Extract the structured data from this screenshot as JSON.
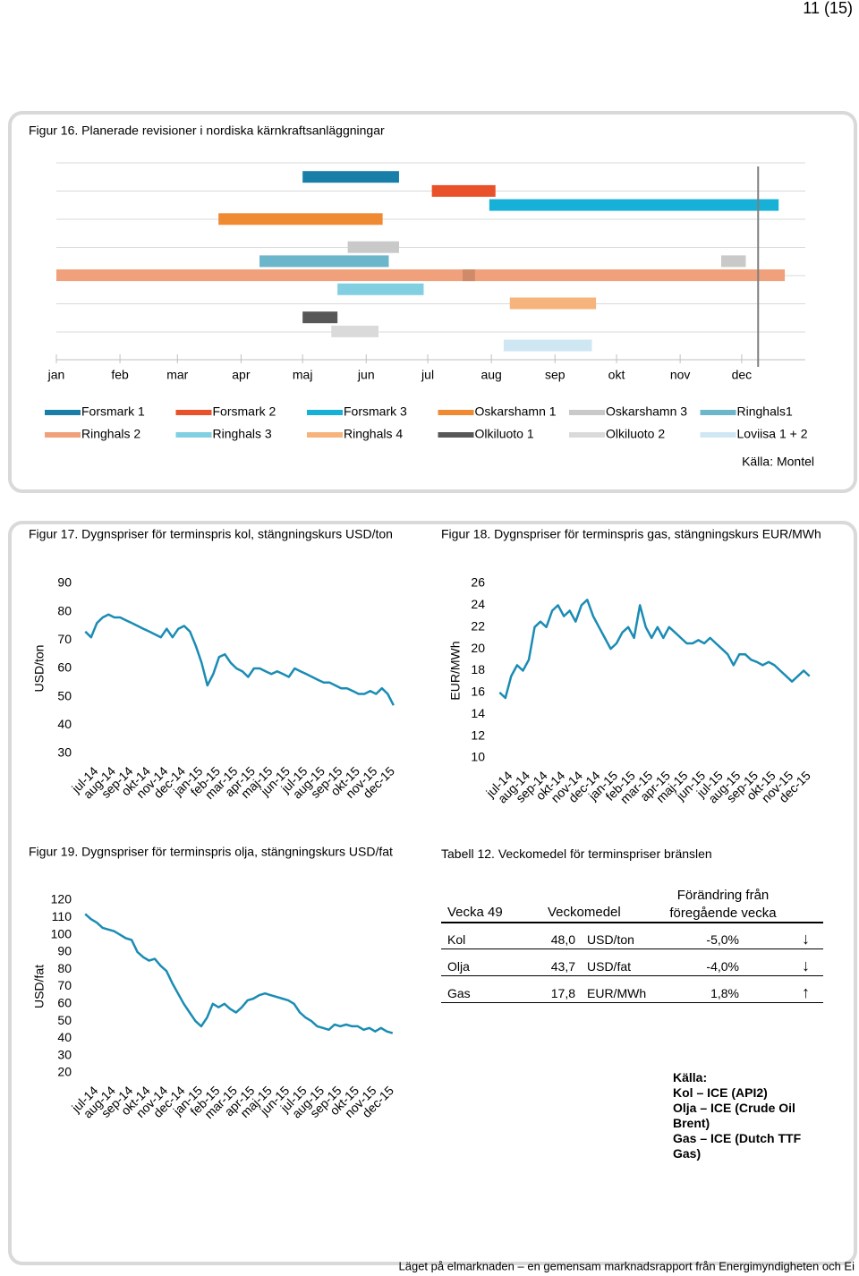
{
  "header": {
    "page_number": "11 (15)"
  },
  "footer": "Läget på elmarknaden – en gemensam marknadsrapport från Energimyndigheten och Ei",
  "chart_data": [
    {
      "type": "gantt",
      "title": "Figur 16. Planerade revisioner i nordiska kärnkraftsanläggningar",
      "xlim": [
        0,
        365
      ],
      "xticks": [
        {
          "value": 0,
          "label": "jan"
        },
        {
          "value": 31,
          "label": "feb"
        },
        {
          "value": 59,
          "label": "mar"
        },
        {
          "value": 90,
          "label": "apr"
        },
        {
          "value": 120,
          "label": "maj"
        },
        {
          "value": 151,
          "label": "jun"
        },
        {
          "value": 181,
          "label": "jul"
        },
        {
          "value": 212,
          "label": "aug"
        },
        {
          "value": 243,
          "label": "sep"
        },
        {
          "value": 273,
          "label": "okt"
        },
        {
          "value": 304,
          "label": "nov"
        },
        {
          "value": 334,
          "label": "dec"
        }
      ],
      "series": [
        {
          "name": "Forsmark 1",
          "color": "#1a7fa8",
          "periods": [
            [
              120,
              167
            ]
          ]
        },
        {
          "name": "Forsmark 2",
          "color": "#e8512a",
          "periods": [
            [
              183,
              214
            ]
          ]
        },
        {
          "name": "Forsmark 3",
          "color": "#17b0d6",
          "periods": [
            [
              211,
              352
            ]
          ]
        },
        {
          "name": "Oskarshamn 1",
          "color": "#ef8a32",
          "periods": [
            [
              79,
              159
            ]
          ]
        },
        {
          "name": "Oskarshamn 3",
          "color": "#c9c9c9",
          "periods": [
            [
              142,
              167
            ],
            [
              324,
              336
            ]
          ]
        },
        {
          "name": "Ringhals1",
          "color": "#6cb6cc",
          "periods": [
            [
              99,
              162
            ]
          ]
        },
        {
          "name": "Ringhals 2",
          "color": "#f0a07a",
          "periods": [
            [
              0,
              355
            ],
            [
              198,
              204
            ]
          ]
        },
        {
          "name": "Ringhals 3",
          "color": "#82cfe2",
          "periods": [
            [
              137,
              179
            ]
          ]
        },
        {
          "name": "Ringhals 4",
          "color": "#f6b47c",
          "periods": [
            [
              221,
              263
            ]
          ]
        },
        {
          "name": "Olkiluoto 1",
          "color": "#575757",
          "periods": [
            [
              120,
              137
            ]
          ]
        },
        {
          "name": "Olkiluoto 2",
          "color": "#dadada",
          "periods": [
            [
              134,
              157
            ]
          ]
        },
        {
          "name": "Loviisa 1 + 2",
          "color": "#cfe7f3",
          "periods": [
            [
              218,
              261
            ]
          ]
        }
      ],
      "reference_line_x": 342,
      "source": "Källa: Montel"
    },
    {
      "type": "line",
      "title": "Figur 17. Dygnspriser för terminspris kol, stängningskurs USD/ton",
      "y_label": "USD/ton",
      "categories": [
        "jul-14",
        "aug-14",
        "sep-14",
        "okt-14",
        "nov-14",
        "dec-14",
        "jan-15",
        "feb-15",
        "mar-15",
        "apr-15",
        "maj-15",
        "jun-15",
        "jul-15",
        "aug-15",
        "sep-15",
        "okt-15",
        "nov-15",
        "dec-15"
      ],
      "x": [
        "jul-14",
        "jul-14",
        "jul-14",
        "aug-14",
        "aug-14",
        "aug-14",
        "sep-14",
        "sep-14",
        "sep-14",
        "okt-14",
        "okt-14",
        "okt-14",
        "nov-14",
        "nov-14",
        "nov-14",
        "dec-14",
        "dec-14",
        "dec-14",
        "jan-15",
        "jan-15",
        "jan-15",
        "feb-15",
        "feb-15",
        "feb-15",
        "mar-15",
        "mar-15",
        "mar-15",
        "apr-15",
        "apr-15",
        "apr-15",
        "maj-15",
        "maj-15",
        "maj-15",
        "jun-15",
        "jun-15",
        "jun-15",
        "jul-15",
        "jul-15",
        "jul-15",
        "aug-15",
        "aug-15",
        "aug-15",
        "sep-15",
        "sep-15",
        "sep-15",
        "okt-15",
        "okt-15",
        "okt-15",
        "nov-15",
        "nov-15",
        "nov-15",
        "dec-15",
        "dec-15",
        "dec-15"
      ],
      "values": [
        73,
        71,
        76,
        78,
        79,
        78,
        78,
        77,
        76,
        75,
        74,
        73,
        72,
        71,
        74,
        71,
        74,
        75,
        73,
        68,
        62,
        54,
        58,
        64,
        65,
        62,
        60,
        59,
        57,
        60,
        60,
        59,
        58,
        59,
        58,
        57,
        60,
        59,
        58,
        57,
        56,
        55,
        55,
        54,
        53,
        53,
        52,
        51,
        51,
        52,
        51,
        53,
        51,
        47
      ],
      "color": "#1a8cb4",
      "ylim": [
        30,
        90
      ],
      "yticks": [
        30,
        40,
        50,
        60,
        70,
        80,
        90
      ]
    },
    {
      "type": "line",
      "title": "Figur 18. Dygnspriser för terminspris gas, stängningskurs EUR/MWh",
      "y_label": "EUR/MWh",
      "categories": [
        "jul-14",
        "aug-14",
        "sep-14",
        "okt-14",
        "nov-14",
        "dec-14",
        "jan-15",
        "feb-15",
        "mar-15",
        "apr-15",
        "maj-15",
        "jun-15",
        "jul-15",
        "aug-15",
        "sep-15",
        "okt-15",
        "nov-15",
        "dec-15"
      ],
      "x": [
        "jul-14",
        "jul-14",
        "jul-14",
        "aug-14",
        "aug-14",
        "aug-14",
        "sep-14",
        "sep-14",
        "sep-14",
        "okt-14",
        "okt-14",
        "okt-14",
        "nov-14",
        "nov-14",
        "nov-14",
        "dec-14",
        "dec-14",
        "dec-14",
        "jan-15",
        "jan-15",
        "jan-15",
        "feb-15",
        "feb-15",
        "feb-15",
        "mar-15",
        "mar-15",
        "mar-15",
        "apr-15",
        "apr-15",
        "apr-15",
        "maj-15",
        "maj-15",
        "maj-15",
        "jun-15",
        "jun-15",
        "jun-15",
        "jul-15",
        "jul-15",
        "jul-15",
        "aug-15",
        "aug-15",
        "aug-15",
        "sep-15",
        "sep-15",
        "sep-15",
        "okt-15",
        "okt-15",
        "okt-15",
        "nov-15",
        "nov-15",
        "nov-15",
        "dec-15",
        "dec-15",
        "dec-15"
      ],
      "values": [
        16,
        15.5,
        17.5,
        18.5,
        18,
        19,
        22,
        22.5,
        22,
        23.5,
        24,
        23,
        23.5,
        22.5,
        24,
        24.5,
        23,
        22,
        21,
        20,
        20.5,
        21.5,
        22,
        21,
        24,
        22,
        21,
        22,
        21,
        22,
        21.5,
        21,
        20.5,
        20.5,
        20.8,
        20.5,
        21,
        20.5,
        20,
        19.5,
        18.5,
        19.5,
        19.5,
        19,
        18.8,
        18.5,
        18.8,
        18.5,
        18,
        17.5,
        17,
        17.5,
        18,
        17.5
      ],
      "color": "#1a8cb4",
      "ylim": [
        10,
        26
      ],
      "yticks": [
        10,
        12,
        14,
        16,
        18,
        20,
        22,
        24,
        26
      ]
    },
    {
      "type": "line",
      "title": "Figur 19. Dygnspriser för terminspris olja, stängningskurs USD/fat",
      "y_label": "USD/fat",
      "categories": [
        "jul-14",
        "aug-14",
        "sep-14",
        "okt-14",
        "nov-14",
        "dec-14",
        "jan-15",
        "feb-15",
        "mar-15",
        "apr-15",
        "maj-15",
        "jun-15",
        "jul-15",
        "aug-15",
        "sep-15",
        "okt-15",
        "nov-15",
        "dec-15"
      ],
      "x": [
        "jul-14",
        "jul-14",
        "jul-14",
        "aug-14",
        "aug-14",
        "aug-14",
        "sep-14",
        "sep-14",
        "sep-14",
        "okt-14",
        "okt-14",
        "okt-14",
        "nov-14",
        "nov-14",
        "nov-14",
        "dec-14",
        "dec-14",
        "dec-14",
        "jan-15",
        "jan-15",
        "jan-15",
        "feb-15",
        "feb-15",
        "feb-15",
        "mar-15",
        "mar-15",
        "mar-15",
        "apr-15",
        "apr-15",
        "apr-15",
        "maj-15",
        "maj-15",
        "maj-15",
        "jun-15",
        "jun-15",
        "jun-15",
        "jul-15",
        "jul-15",
        "jul-15",
        "aug-15",
        "aug-15",
        "aug-15",
        "sep-15",
        "sep-15",
        "sep-15",
        "okt-15",
        "okt-15",
        "okt-15",
        "nov-15",
        "nov-15",
        "nov-15",
        "dec-15",
        "dec-15",
        "dec-15"
      ],
      "values": [
        112,
        109,
        107,
        104,
        103,
        102,
        100,
        98,
        97,
        90,
        87,
        85,
        86,
        82,
        79,
        72,
        66,
        60,
        55,
        50,
        47,
        52,
        60,
        58,
        60,
        57,
        55,
        58,
        62,
        63,
        65,
        66,
        65,
        64,
        63,
        62,
        60,
        55,
        52,
        50,
        47,
        46,
        45,
        48,
        47,
        48,
        47,
        47,
        45,
        46,
        44,
        46,
        44,
        43
      ],
      "color": "#1a8cb4",
      "ylim": [
        20,
        120
      ],
      "yticks": [
        20,
        30,
        40,
        50,
        60,
        70,
        80,
        90,
        100,
        110,
        120
      ]
    }
  ],
  "table": {
    "title": "Tabell 12. Veckomedel för terminspriser bränslen",
    "header": [
      "Vecka 49",
      "Veckomedel",
      "Förändring från föregående vecka"
    ],
    "rows": [
      [
        "Kol",
        "48,0",
        "USD/ton",
        "-5,0%",
        "↓"
      ],
      [
        "Olja",
        "43,7",
        "USD/fat",
        "-4,0%",
        "↓"
      ],
      [
        "Gas",
        "17,8",
        "EUR/MWh",
        "1,8%",
        "↑"
      ]
    ],
    "source": [
      "Källa:",
      "Kol – ICE (API2)",
      "Olja – ICE (Crude Oil Brent)",
      "Gas – ICE (Dutch TTF Gas)"
    ]
  }
}
